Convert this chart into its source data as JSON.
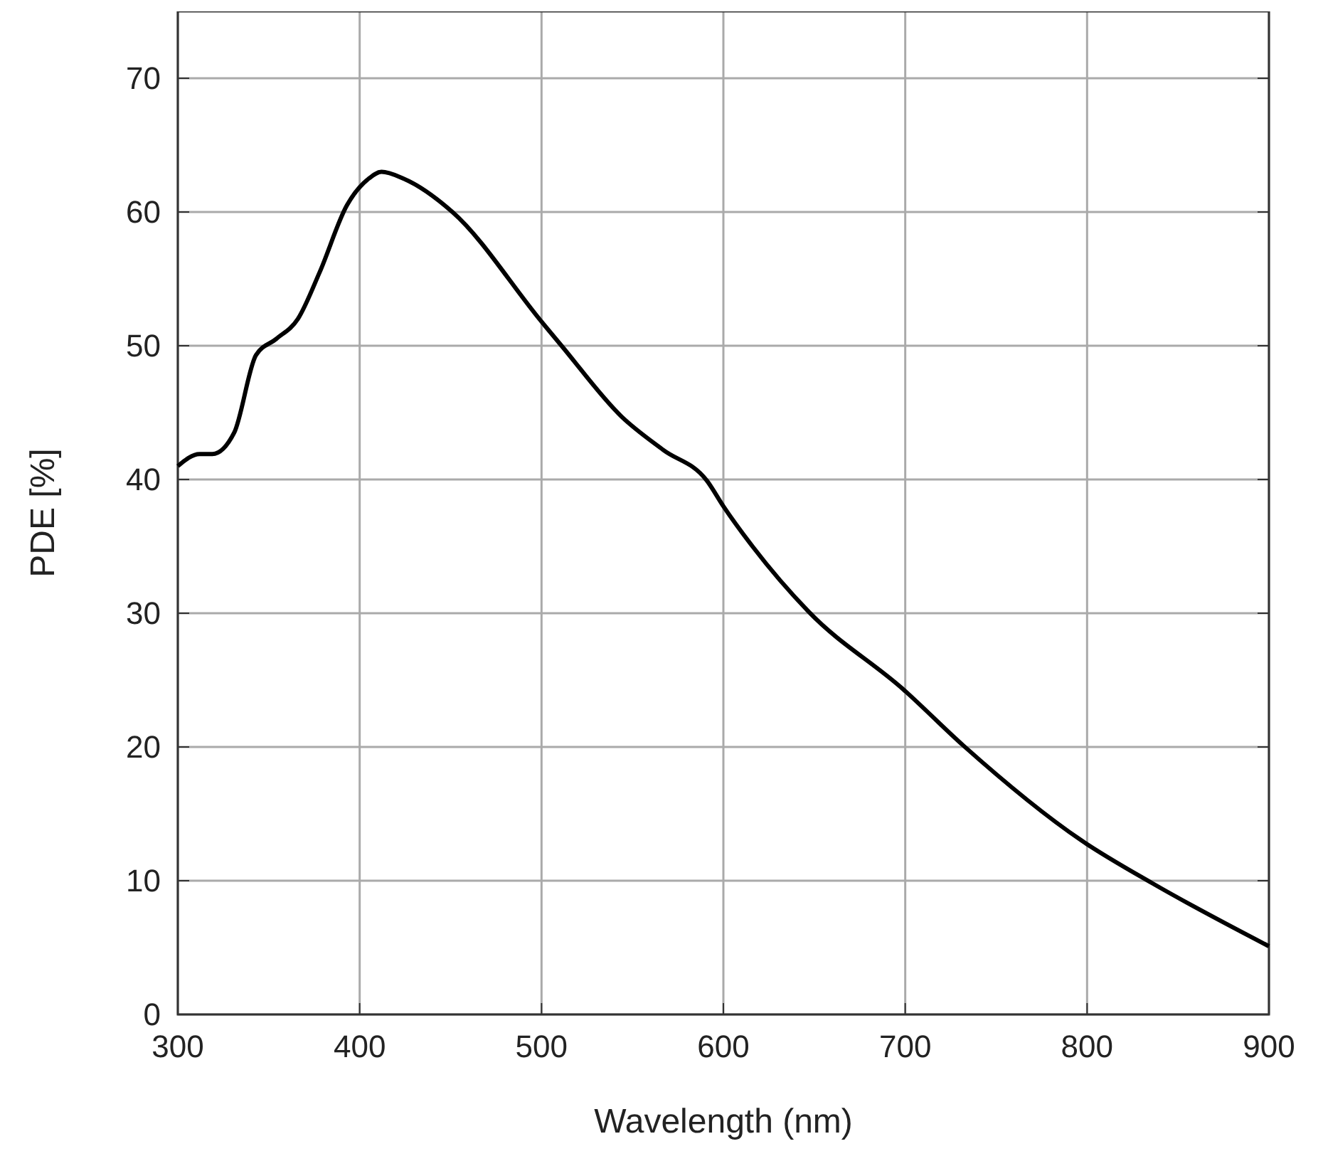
{
  "chart_data": {
    "type": "line",
    "xlabel": "Wavelength (nm)",
    "ylabel": "PDE [%]",
    "x": [
      300,
      312,
      319,
      331,
      343,
      354,
      366,
      378,
      393,
      405,
      412,
      424,
      451,
      500,
      511,
      544,
      567,
      591,
      600,
      616,
      647,
      699,
      732,
      797,
      836,
      900
    ],
    "series": [
      {
        "color": "#000000",
        "values": [
          41,
          41.9,
          41.9,
          43.5,
          49.3,
          50.5,
          52,
          55.5,
          60.5,
          62.5,
          63,
          62.5,
          60,
          51.8,
          50,
          44.7,
          42.2,
          39.9,
          38,
          35,
          30.1,
          24.3,
          20.1,
          13,
          9.8,
          5.1
        ]
      }
    ],
    "xlim": [
      300,
      900
    ],
    "xticks": [
      300,
      400,
      500,
      600,
      700,
      800,
      900
    ],
    "ylim": [
      0,
      75
    ],
    "yticks": [
      0,
      10,
      20,
      30,
      40,
      50,
      60,
      70
    ],
    "grid": true,
    "marker": "none",
    "line_style": "solid"
  }
}
